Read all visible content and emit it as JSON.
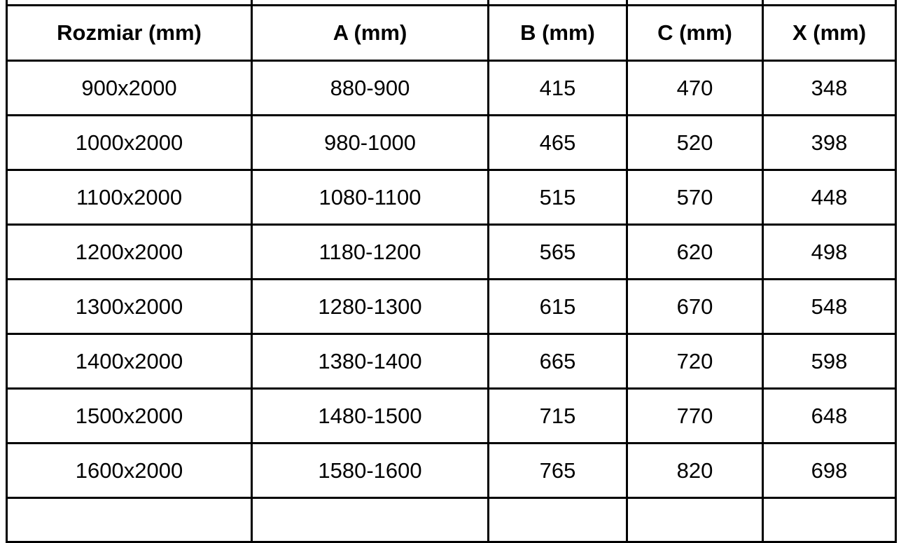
{
  "colors": {
    "border": "#000000",
    "text": "#000000",
    "background": "#ffffff"
  },
  "table": {
    "column_keys": [
      "rozmiar",
      "a",
      "b",
      "c",
      "x"
    ],
    "headers": [
      "Rozmiar (mm)",
      "A (mm)",
      "B (mm)",
      "C (mm)",
      "X (mm)"
    ],
    "rows": [
      [
        "900x2000",
        "880-900",
        "415",
        "470",
        "348"
      ],
      [
        "1000x2000",
        "980-1000",
        "465",
        "520",
        "398"
      ],
      [
        "1100x2000",
        "1080-1100",
        "515",
        "570",
        "448"
      ],
      [
        "1200x2000",
        "1180-1200",
        "565",
        "620",
        "498"
      ],
      [
        "1300x2000",
        "1280-1300",
        "615",
        "670",
        "548"
      ],
      [
        "1400x2000",
        "1380-1400",
        "665",
        "720",
        "598"
      ],
      [
        "1500x2000",
        "1480-1500",
        "715",
        "770",
        "648"
      ],
      [
        "1600x2000",
        "1580-1600",
        "765",
        "820",
        "698"
      ]
    ]
  }
}
